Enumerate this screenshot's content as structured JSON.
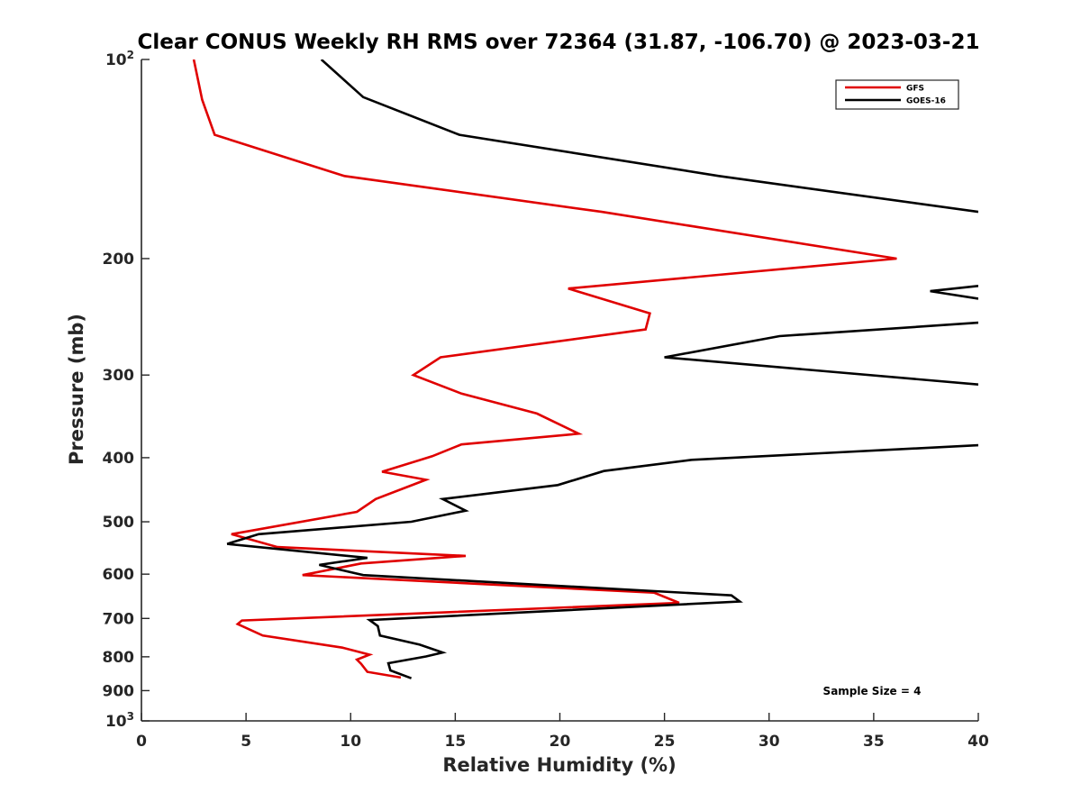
{
  "chart_data": {
    "type": "line",
    "title": "Clear CONUS Weekly RH RMS over 72364 (31.87, -106.70) @ 2023-03-21",
    "xlabel": "Relative Humidity (%)",
    "ylabel": "Pressure (mb)",
    "xlim": [
      0,
      40
    ],
    "ylim": [
      100,
      1000
    ],
    "y_scale": "log",
    "y_reversed": true,
    "x_ticks": [
      0,
      5,
      10,
      15,
      20,
      25,
      30,
      35,
      40
    ],
    "x_tick_labels": [
      "0",
      "5",
      "10",
      "15",
      "20",
      "25",
      "30",
      "35",
      "40"
    ],
    "y_ticks": [
      100,
      200,
      300,
      400,
      500,
      600,
      700,
      800,
      900,
      1000
    ],
    "y_tick_labels": [
      "10^2",
      "200",
      "300",
      "400",
      "500",
      "600",
      "700",
      "800",
      "900",
      "10^3"
    ],
    "grid": false,
    "legend_position": "top-right",
    "annotation": "Sample Size = 4",
    "series": [
      {
        "name": "GFS",
        "color": "#e00000",
        "points": [
          [
            2.5,
            100
          ],
          [
            2.9,
            115
          ],
          [
            3.5,
            130
          ],
          [
            9.7,
            150
          ],
          [
            22,
            170
          ],
          [
            36.1,
            200
          ],
          [
            20.4,
            222
          ],
          [
            24.3,
            242
          ],
          [
            24.1,
            256
          ],
          [
            14.3,
            282
          ],
          [
            13,
            300
          ],
          [
            15.3,
            320
          ],
          [
            18.9,
            343
          ],
          [
            20.9,
            368
          ],
          [
            15.3,
            382
          ],
          [
            13.9,
            398
          ],
          [
            11.5,
            420
          ],
          [
            13.6,
            432
          ],
          [
            11.2,
            462
          ],
          [
            10.3,
            483
          ],
          [
            4.3,
            522
          ],
          [
            6.5,
            546
          ],
          [
            15.5,
            563
          ],
          [
            10.5,
            578
          ],
          [
            7.7,
            602
          ],
          [
            24.5,
            640
          ],
          [
            25.7,
            663
          ],
          [
            4.8,
            705
          ],
          [
            4.6,
            714
          ],
          [
            5.8,
            743
          ],
          [
            9.6,
            775
          ],
          [
            10.9,
            794
          ],
          [
            10.3,
            808
          ],
          [
            10.5,
            820
          ],
          [
            10.8,
            843
          ],
          [
            12.4,
            860
          ]
        ]
      },
      {
        "name": "GOES-16",
        "color": "#000000",
        "points": [
          [
            8.6,
            100
          ],
          [
            10.6,
            114
          ],
          [
            15.2,
            130
          ],
          [
            27.6,
            150
          ],
          [
            40,
            170
          ],
          [
            null,
            null
          ],
          [
            40,
            220
          ],
          [
            37.7,
            224
          ],
          [
            40,
            230
          ],
          [
            null,
            null
          ],
          [
            40,
            250
          ],
          [
            30.5,
            262
          ],
          [
            25,
            282
          ],
          [
            40,
            310
          ],
          [
            null,
            null
          ],
          [
            40,
            383
          ],
          [
            26.3,
            403
          ],
          [
            22.1,
            419
          ],
          [
            19.9,
            440
          ],
          [
            14.4,
            462
          ],
          [
            15.5,
            481
          ],
          [
            12.9,
            500
          ],
          [
            5.6,
            522
          ],
          [
            4.1,
            540
          ],
          [
            10.8,
            567
          ],
          [
            8.5,
            581
          ],
          [
            10.6,
            602
          ],
          [
            28.2,
            646
          ],
          [
            28.6,
            660
          ],
          [
            10.9,
            704
          ],
          [
            11.3,
            719
          ],
          [
            11.4,
            743
          ],
          [
            13.3,
            767
          ],
          [
            14.4,
            788
          ],
          [
            13.6,
            799
          ],
          [
            11.8,
            818
          ],
          [
            11.9,
            839
          ],
          [
            12.9,
            862
          ]
        ]
      }
    ]
  }
}
